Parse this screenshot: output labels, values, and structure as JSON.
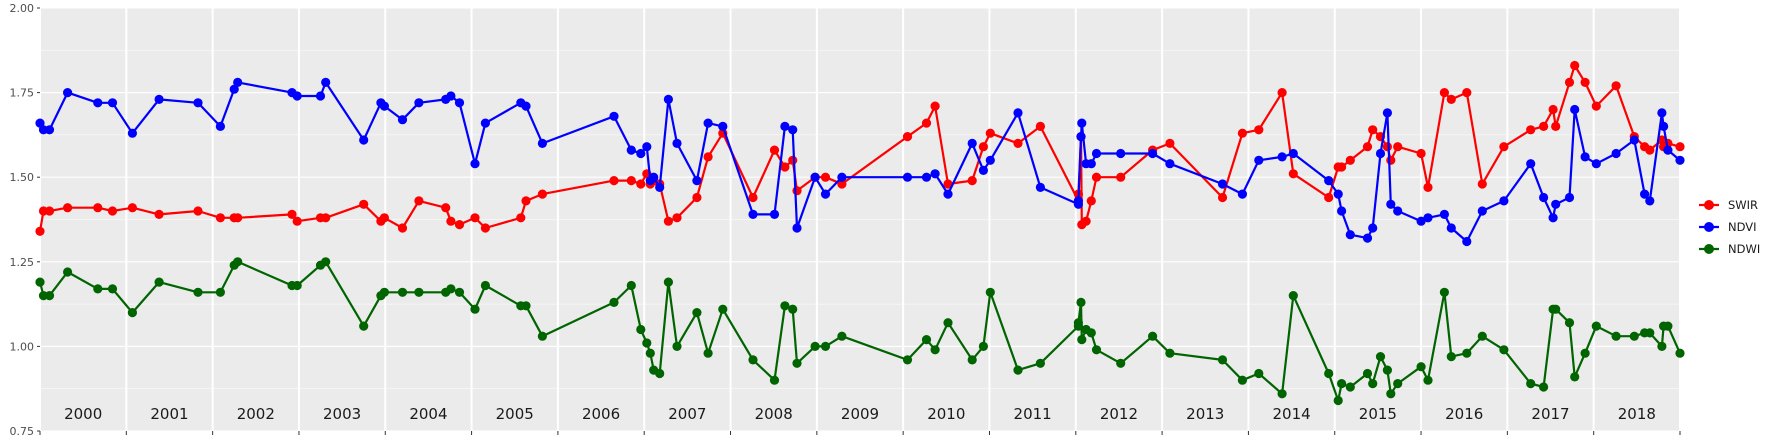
{
  "chart_data": {
    "type": "line",
    "title": "",
    "xlabel": "",
    "ylabel": "",
    "xlim": [
      2000,
      2019
    ],
    "ylim": [
      0.75,
      2.0
    ],
    "y_ticks": [
      "0.75",
      "1.00",
      "1.25",
      "1.50",
      "1.75",
      "2.00"
    ],
    "year_labels": [
      "2000",
      "2001",
      "2002",
      "2003",
      "2004",
      "2005",
      "2006",
      "2007",
      "2008",
      "2009",
      "2010",
      "2011",
      "2012",
      "2013",
      "2014",
      "2015",
      "2016",
      "2017",
      "2018"
    ],
    "grid": true,
    "legend_position": "right",
    "legend": [
      "SWIR",
      "NDVI",
      "NDWI"
    ],
    "colors": {
      "SWIR": "#ff0000",
      "NDVI": "#0000ff",
      "NDWI": "#006400",
      "panel": "#ebebeb",
      "grid": "#ffffff"
    },
    "series": [
      {
        "name": "SWIR",
        "color": "#ff0000",
        "x": [
          2000.0,
          2000.04,
          2000.11,
          2000.32,
          2000.67,
          2000.84,
          2001.07,
          2001.38,
          2001.83,
          2002.09,
          2002.25,
          2002.29,
          2002.92,
          2002.98,
          2003.25,
          2003.31,
          2003.75,
          2003.95,
          2003.99,
          2004.2,
          2004.39,
          2004.7,
          2004.76,
          2004.86,
          2005.04,
          2005.16,
          2005.57,
          2005.63,
          2005.82,
          2006.65,
          2006.85,
          2006.96,
          2007.03,
          2007.07,
          2007.11,
          2007.18,
          2007.28,
          2007.38,
          2007.61,
          2007.74,
          2007.91,
          2008.26,
          2008.51,
          2008.63,
          2008.72,
          2008.77,
          2008.98,
          2009.1,
          2009.29,
          2010.05,
          2010.27,
          2010.37,
          2010.52,
          2010.8,
          2010.93,
          2011.01,
          2011.33,
          2011.59,
          2012.03,
          2012.03,
          2012.06,
          2012.07,
          2012.12,
          2012.18,
          2012.24,
          2012.52,
          2012.89,
          2013.09,
          2013.7,
          2013.93,
          2014.12,
          2014.39,
          2014.52,
          2014.93,
          2015.04,
          2015.08,
          2015.18,
          2015.38,
          2015.44,
          2015.53,
          2015.61,
          2015.65,
          2015.73,
          2016.0,
          2016.08,
          2016.27,
          2016.35,
          2016.53,
          2016.71,
          2016.96,
          2017.27,
          2017.42,
          2017.53,
          2017.56,
          2017.72,
          2017.78,
          2017.9,
          2018.03,
          2018.26,
          2018.47,
          2018.59,
          2018.65,
          2018.79,
          2018.81,
          2018.86,
          2019.0
        ],
        "values": [
          1.34,
          1.4,
          1.4,
          1.41,
          1.41,
          1.4,
          1.41,
          1.39,
          1.4,
          1.38,
          1.38,
          1.38,
          1.39,
          1.37,
          1.38,
          1.38,
          1.42,
          1.37,
          1.38,
          1.35,
          1.43,
          1.41,
          1.37,
          1.36,
          1.38,
          1.35,
          1.38,
          1.43,
          1.45,
          1.49,
          1.49,
          1.48,
          1.51,
          1.48,
          1.49,
          1.48,
          1.37,
          1.38,
          1.44,
          1.56,
          1.63,
          1.44,
          1.58,
          1.53,
          1.55,
          1.46,
          1.5,
          1.5,
          1.48,
          1.62,
          1.66,
          1.71,
          1.48,
          1.49,
          1.59,
          1.63,
          1.6,
          1.65,
          1.43,
          1.45,
          1.62,
          1.36,
          1.37,
          1.43,
          1.5,
          1.5,
          1.58,
          1.6,
          1.44,
          1.63,
          1.64,
          1.75,
          1.51,
          1.44,
          1.53,
          1.53,
          1.55,
          1.59,
          1.64,
          1.62,
          1.59,
          1.55,
          1.59,
          1.57,
          1.47,
          1.75,
          1.73,
          1.75,
          1.48,
          1.59,
          1.64,
          1.65,
          1.7,
          1.65,
          1.78,
          1.83,
          1.78,
          1.71,
          1.77,
          1.62,
          1.59,
          1.58,
          1.61,
          1.59,
          1.6,
          1.59
        ]
      },
      {
        "name": "NDVI",
        "color": "#0000ff",
        "x": [
          2000.0,
          2000.04,
          2000.11,
          2000.32,
          2000.67,
          2000.84,
          2001.07,
          2001.38,
          2001.83,
          2002.09,
          2002.25,
          2002.29,
          2002.92,
          2002.98,
          2003.25,
          2003.31,
          2003.75,
          2003.95,
          2003.99,
          2004.2,
          2004.39,
          2004.7,
          2004.76,
          2004.86,
          2005.04,
          2005.16,
          2005.57,
          2005.63,
          2005.82,
          2006.65,
          2006.85,
          2006.96,
          2007.03,
          2007.07,
          2007.11,
          2007.18,
          2007.28,
          2007.38,
          2007.61,
          2007.74,
          2007.91,
          2008.26,
          2008.51,
          2008.63,
          2008.72,
          2008.77,
          2008.98,
          2009.1,
          2009.29,
          2010.05,
          2010.27,
          2010.37,
          2010.52,
          2010.8,
          2010.93,
          2011.01,
          2011.33,
          2011.59,
          2012.03,
          2012.03,
          2012.06,
          2012.07,
          2012.12,
          2012.18,
          2012.24,
          2012.52,
          2012.89,
          2013.09,
          2013.7,
          2013.93,
          2014.12,
          2014.39,
          2014.52,
          2014.93,
          2015.04,
          2015.08,
          2015.18,
          2015.38,
          2015.44,
          2015.53,
          2015.61,
          2015.65,
          2015.73,
          2016.0,
          2016.08,
          2016.27,
          2016.35,
          2016.53,
          2016.71,
          2016.96,
          2017.27,
          2017.42,
          2017.53,
          2017.56,
          2017.72,
          2017.78,
          2017.9,
          2018.03,
          2018.26,
          2018.47,
          2018.59,
          2018.65,
          2018.79,
          2018.81,
          2018.86,
          2019.0
        ],
        "values": [
          1.66,
          1.64,
          1.64,
          1.75,
          1.72,
          1.72,
          1.63,
          1.73,
          1.72,
          1.65,
          1.76,
          1.78,
          1.75,
          1.74,
          1.74,
          1.78,
          1.61,
          1.72,
          1.71,
          1.67,
          1.72,
          1.73,
          1.74,
          1.72,
          1.54,
          1.66,
          1.72,
          1.71,
          1.6,
          1.68,
          1.58,
          1.57,
          1.59,
          1.49,
          1.5,
          1.47,
          1.73,
          1.6,
          1.49,
          1.66,
          1.65,
          1.39,
          1.39,
          1.65,
          1.64,
          1.35,
          1.5,
          1.45,
          1.5,
          1.5,
          1.5,
          1.51,
          1.45,
          1.6,
          1.52,
          1.55,
          1.69,
          1.47,
          1.42,
          1.43,
          1.62,
          1.66,
          1.54,
          1.54,
          1.57,
          1.57,
          1.57,
          1.54,
          1.48,
          1.45,
          1.55,
          1.56,
          1.57,
          1.49,
          1.45,
          1.4,
          1.33,
          1.32,
          1.35,
          1.57,
          1.69,
          1.42,
          1.4,
          1.37,
          1.38,
          1.39,
          1.35,
          1.31,
          1.4,
          1.43,
          1.54,
          1.44,
          1.38,
          1.42,
          1.44,
          1.7,
          1.56,
          1.54,
          1.57,
          1.61,
          1.45,
          1.43,
          1.69,
          1.65,
          1.58,
          1.55
        ]
      },
      {
        "name": "NDWI",
        "color": "#006400",
        "x": [
          2000.0,
          2000.04,
          2000.11,
          2000.32,
          2000.67,
          2000.84,
          2001.07,
          2001.38,
          2001.83,
          2002.09,
          2002.25,
          2002.29,
          2002.92,
          2002.98,
          2003.25,
          2003.31,
          2003.75,
          2003.95,
          2003.99,
          2004.2,
          2004.39,
          2004.7,
          2004.76,
          2004.86,
          2005.04,
          2005.16,
          2005.57,
          2005.63,
          2005.82,
          2006.65,
          2006.85,
          2006.96,
          2007.03,
          2007.07,
          2007.11,
          2007.18,
          2007.28,
          2007.38,
          2007.61,
          2007.74,
          2007.91,
          2008.26,
          2008.51,
          2008.63,
          2008.72,
          2008.77,
          2008.98,
          2009.1,
          2009.29,
          2010.05,
          2010.27,
          2010.37,
          2010.52,
          2010.8,
          2010.93,
          2011.01,
          2011.33,
          2011.59,
          2012.03,
          2012.03,
          2012.06,
          2012.07,
          2012.12,
          2012.18,
          2012.24,
          2012.52,
          2012.89,
          2013.09,
          2013.7,
          2013.93,
          2014.12,
          2014.39,
          2014.52,
          2014.93,
          2015.04,
          2015.08,
          2015.18,
          2015.38,
          2015.44,
          2015.53,
          2015.61,
          2015.65,
          2015.73,
          2016.0,
          2016.08,
          2016.27,
          2016.35,
          2016.53,
          2016.71,
          2016.96,
          2017.27,
          2017.42,
          2017.53,
          2017.56,
          2017.72,
          2017.78,
          2017.9,
          2018.03,
          2018.26,
          2018.47,
          2018.59,
          2018.65,
          2018.79,
          2018.81,
          2018.86,
          2019.0
        ],
        "values": [
          1.19,
          1.15,
          1.15,
          1.22,
          1.17,
          1.17,
          1.1,
          1.19,
          1.16,
          1.16,
          1.24,
          1.25,
          1.18,
          1.18,
          1.24,
          1.25,
          1.06,
          1.15,
          1.16,
          1.16,
          1.16,
          1.16,
          1.17,
          1.16,
          1.11,
          1.18,
          1.12,
          1.12,
          1.03,
          1.13,
          1.18,
          1.05,
          1.01,
          0.98,
          0.93,
          0.92,
          1.19,
          1.0,
          1.1,
          0.98,
          1.11,
          0.96,
          0.9,
          1.12,
          1.11,
          0.95,
          1.0,
          1.0,
          1.03,
          0.96,
          1.02,
          0.99,
          1.07,
          0.96,
          1.0,
          1.16,
          0.93,
          0.95,
          1.06,
          1.07,
          1.13,
          1.02,
          1.05,
          1.04,
          0.99,
          0.95,
          1.03,
          0.98,
          0.96,
          0.9,
          0.92,
          0.86,
          1.15,
          0.92,
          0.84,
          0.89,
          0.88,
          0.92,
          0.89,
          0.97,
          0.93,
          0.86,
          0.89,
          0.94,
          0.9,
          1.16,
          0.97,
          0.98,
          1.03,
          0.99,
          0.89,
          0.88,
          1.11,
          1.11,
          1.07,
          0.91,
          0.98,
          1.06,
          1.03,
          1.03,
          1.04,
          1.04,
          1.0,
          1.06,
          1.06,
          0.98
        ]
      }
    ]
  }
}
